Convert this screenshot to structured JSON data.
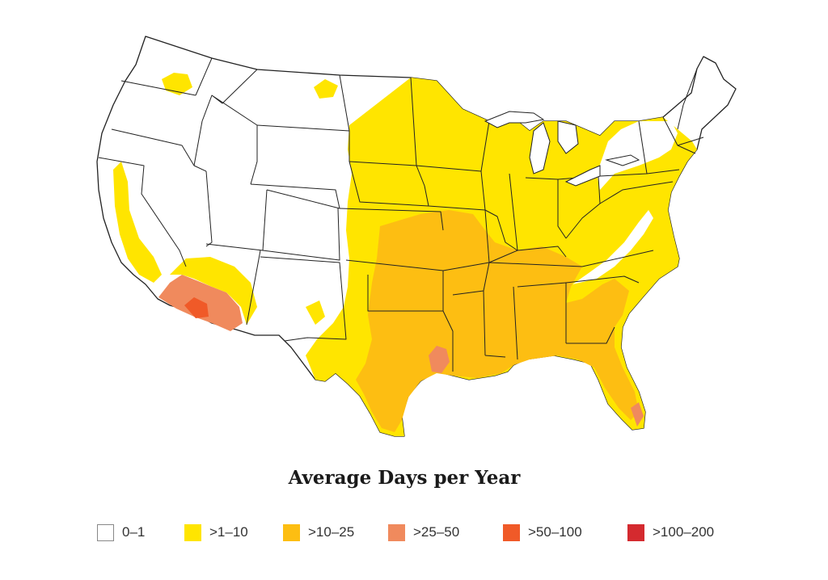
{
  "map": {
    "legend_title": "Average Days per Year",
    "region": "contiguous-united-states",
    "colors": {
      "0-1": "#ffffff",
      ">1-10": "#ffe500",
      ">10-25": "#fdbe12",
      ">25-50": "#f08a5d",
      ">50-100": "#f05a28",
      ">100-200": "#d42a2f"
    },
    "legend": [
      {
        "label": "0–1",
        "color": "#ffffff"
      },
      {
        "label": ">1–10",
        "color": "#ffe500"
      },
      {
        "label": ">10–25",
        "color": "#fdbe12"
      },
      {
        "label": ">25–50",
        "color": "#f08a5d"
      },
      {
        "label": ">50–100",
        "color": "#f05a28"
      },
      {
        "label": ">100–200",
        "color": "#d42a2f"
      }
    ]
  }
}
